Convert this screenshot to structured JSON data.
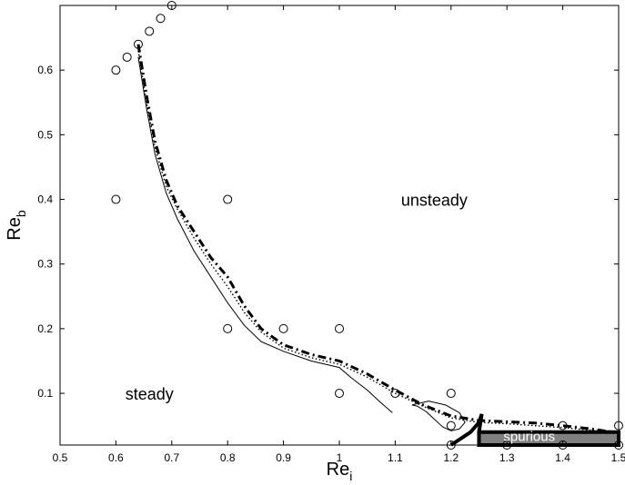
{
  "chart_data": {
    "type": "line",
    "title": "",
    "xlabel": {
      "main": "Re",
      "sub": "i"
    },
    "ylabel": {
      "main": "Re",
      "sub": "b"
    },
    "xlim": [
      0.5,
      1.5
    ],
    "ylim": [
      0.02,
      0.7
    ],
    "x_ticks": [
      "0.5",
      "0.6",
      "0.7",
      "0.8",
      "0.9",
      "1",
      "1.1",
      "1.2",
      "1.3",
      "1.4",
      "1.5"
    ],
    "y_ticks": [
      "0.1",
      "0.2",
      "0.3",
      "0.4",
      "0.5",
      "0.6"
    ],
    "grid": false,
    "region_labels": {
      "unsteady": "unsteady",
      "steady": "steady",
      "spurious": "spurious"
    },
    "colors": {
      "line": "#000000",
      "spurious_fill": "#808080",
      "background": "#ffffff"
    },
    "markers": {
      "shape": "open-circle",
      "points": [
        [
          0.6,
          0.6
        ],
        [
          0.6,
          0.4
        ],
        [
          0.62,
          0.62
        ],
        [
          0.64,
          0.64
        ],
        [
          0.66,
          0.66
        ],
        [
          0.68,
          0.68
        ],
        [
          0.7,
          0.7
        ],
        [
          0.8,
          0.4
        ],
        [
          0.8,
          0.2
        ],
        [
          0.9,
          0.2
        ],
        [
          1.0,
          0.2
        ],
        [
          1.0,
          0.1
        ],
        [
          1.1,
          0.1
        ],
        [
          1.2,
          0.1
        ],
        [
          1.2,
          0.05
        ],
        [
          1.2,
          0.02
        ],
        [
          1.3,
          0.02
        ],
        [
          1.4,
          0.05
        ],
        [
          1.4,
          0.02
        ],
        [
          1.5,
          0.05
        ],
        [
          1.5,
          0.02
        ]
      ]
    },
    "series": [
      {
        "style": "solid-thin",
        "x": [
          0.64,
          0.655,
          0.67,
          0.69,
          0.71,
          0.74,
          0.77,
          0.8,
          0.83,
          0.86,
          0.9,
          0.95,
          1.0,
          1.02,
          1.05,
          1.075,
          1.095
        ],
        "y": [
          0.62,
          0.54,
          0.47,
          0.41,
          0.37,
          0.32,
          0.28,
          0.24,
          0.205,
          0.18,
          0.165,
          0.15,
          0.14,
          0.125,
          0.105,
          0.085,
          0.07
        ]
      },
      {
        "style": "dotted",
        "x": [
          0.64,
          0.655,
          0.67,
          0.69,
          0.71,
          0.74,
          0.77,
          0.8,
          0.83,
          0.86,
          0.9,
          0.95,
          1.0,
          1.05,
          1.1,
          1.15,
          1.2,
          1.25,
          1.3,
          1.35,
          1.4,
          1.45,
          1.49
        ],
        "y": [
          0.63,
          0.55,
          0.48,
          0.42,
          0.385,
          0.34,
          0.3,
          0.265,
          0.225,
          0.195,
          0.17,
          0.155,
          0.145,
          0.125,
          0.1,
          0.08,
          0.062,
          0.055,
          0.053,
          0.05,
          0.047,
          0.043,
          0.04
        ]
      },
      {
        "style": "dash-dot-thick",
        "x": [
          0.64,
          0.655,
          0.67,
          0.69,
          0.71,
          0.74,
          0.77,
          0.8,
          0.83,
          0.86,
          0.9,
          0.95,
          1.0,
          1.05,
          1.1,
          1.15,
          1.2,
          1.25,
          1.3,
          1.35,
          1.4,
          1.45,
          1.49
        ],
        "y": [
          0.64,
          0.56,
          0.49,
          0.43,
          0.39,
          0.35,
          0.31,
          0.28,
          0.235,
          0.2,
          0.175,
          0.16,
          0.15,
          0.13,
          0.105,
          0.082,
          0.065,
          0.058,
          0.056,
          0.054,
          0.05,
          0.045,
          0.04
        ]
      },
      {
        "style": "solid-thin-loop",
        "x": [
          1.13,
          1.16,
          1.19,
          1.215,
          1.225,
          1.215,
          1.2,
          1.185,
          1.17,
          1.155,
          1.14,
          1.13
        ],
        "y": [
          0.082,
          0.088,
          0.082,
          0.07,
          0.055,
          0.045,
          0.042,
          0.048,
          0.06,
          0.072,
          0.08,
          0.082
        ]
      }
    ],
    "spurious_region": {
      "x": [
        1.25,
        1.5,
        1.5,
        1.25
      ],
      "y": [
        0.04,
        0.04,
        0.02,
        0.02
      ]
    },
    "spurious_boundary": {
      "x": [
        1.2,
        1.235,
        1.25,
        1.255,
        1.25
      ],
      "y": [
        0.02,
        0.04,
        0.055,
        0.068,
        0.04
      ]
    }
  }
}
